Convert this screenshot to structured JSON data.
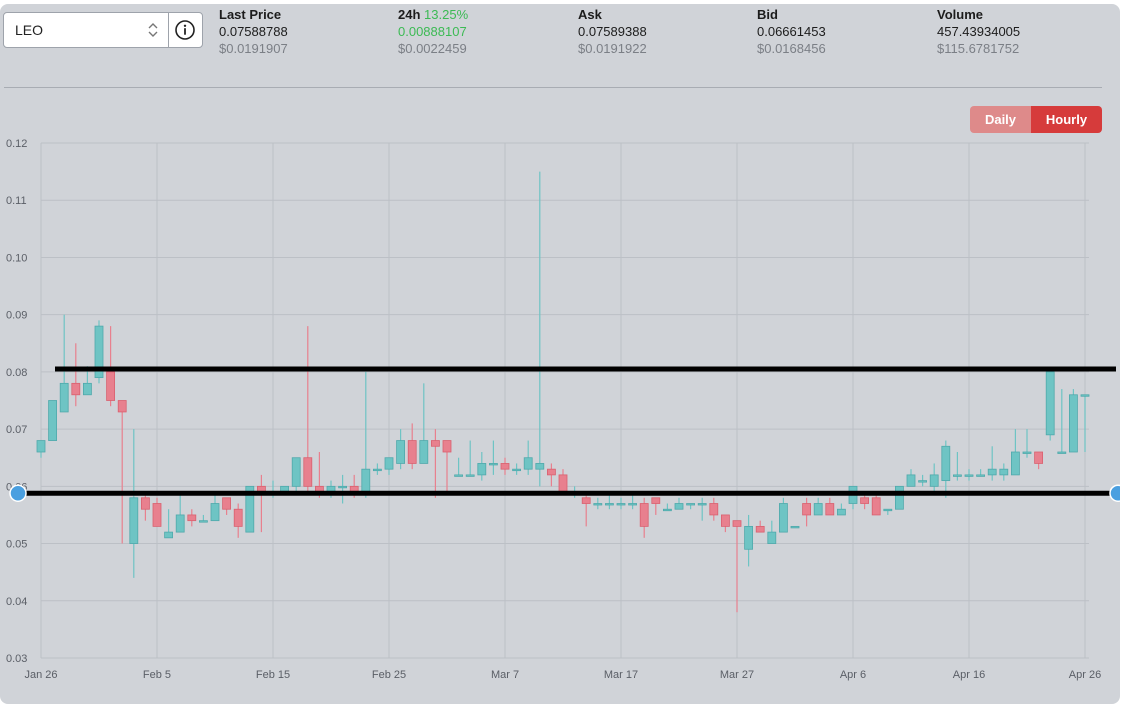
{
  "selector": {
    "value": "LEO"
  },
  "stats": [
    {
      "label": "Last Price",
      "label_extra": "",
      "value": "0.07588788",
      "sub": "$0.0191907"
    },
    {
      "label": "24h",
      "label_extra": "13.25%",
      "value": "0.00888107",
      "sub": "$0.0022459"
    },
    {
      "label": "Ask",
      "label_extra": "",
      "value": "0.07589388",
      "sub": "$0.0191922"
    },
    {
      "label": "Bid",
      "label_extra": "",
      "value": "0.06661453",
      "sub": "$0.0168456"
    },
    {
      "label": "Volume",
      "label_extra": "",
      "value": "457.43934005",
      "sub": "$115.6781752"
    }
  ],
  "toggle": {
    "daily": "Daily",
    "hourly": "Hourly",
    "active": "hourly"
  },
  "colors": {
    "up": "#6ec4c4",
    "down": "#e8808e",
    "accent": "#d63b3b",
    "handle": "#4a9fe0",
    "line": "#000000"
  },
  "chart_data": {
    "type": "candlestick",
    "ylim": [
      0.03,
      0.12
    ],
    "yticks": [
      "0.12",
      "0.11",
      "0.10",
      "0.09",
      "0.08",
      "0.07",
      "0.06",
      "0.05",
      "0.04",
      "0.03"
    ],
    "x_range": [
      0,
      91
    ],
    "xticks": [
      {
        "label": "Jan 26",
        "day": 0
      },
      {
        "label": "Feb 5",
        "day": 10
      },
      {
        "label": "Feb 15",
        "day": 20
      },
      {
        "label": "Feb 25",
        "day": 30
      },
      {
        "label": "Mar 7",
        "day": 40
      },
      {
        "label": "Mar 17",
        "day": 50
      },
      {
        "label": "Mar 27",
        "day": 60
      },
      {
        "label": "Apr 6",
        "day": 70
      },
      {
        "label": "Apr 16",
        "day": 80
      },
      {
        "label": "Apr 26",
        "day": 90
      }
    ],
    "candles": [
      [
        0,
        0.066,
        0.068,
        0.065,
        0.068
      ],
      [
        1,
        0.068,
        0.075,
        0.068,
        0.075
      ],
      [
        2,
        0.073,
        0.078,
        0.073,
        0.09
      ],
      [
        3,
        0.078,
        0.076,
        0.074,
        0.085
      ],
      [
        4,
        0.076,
        0.078,
        0.076,
        0.081
      ],
      [
        5,
        0.079,
        0.088,
        0.078,
        0.089
      ],
      [
        6,
        0.08,
        0.075,
        0.074,
        0.088
      ],
      [
        7,
        0.075,
        0.073,
        0.05,
        0.075
      ],
      [
        8,
        0.05,
        0.058,
        0.044,
        0.07
      ],
      [
        9,
        0.058,
        0.056,
        0.054,
        0.059
      ],
      [
        10,
        0.057,
        0.053,
        0.053,
        0.058
      ],
      [
        11,
        0.051,
        0.052,
        0.051,
        0.056
      ],
      [
        12,
        0.052,
        0.055,
        0.052,
        0.059
      ],
      [
        13,
        0.055,
        0.054,
        0.053,
        0.056
      ],
      [
        14,
        0.054,
        0.054,
        0.054,
        0.055
      ],
      [
        15,
        0.054,
        0.057,
        0.054,
        0.059
      ],
      [
        16,
        0.058,
        0.056,
        0.055,
        0.058
      ],
      [
        17,
        0.056,
        0.053,
        0.051,
        0.057
      ],
      [
        18,
        0.052,
        0.06,
        0.052,
        0.06
      ],
      [
        19,
        0.06,
        0.059,
        0.052,
        0.062
      ],
      [
        20,
        0.059,
        0.059,
        0.058,
        0.061
      ],
      [
        21,
        0.059,
        0.06,
        0.059,
        0.06
      ],
      [
        22,
        0.06,
        0.065,
        0.059,
        0.065
      ],
      [
        23,
        0.065,
        0.06,
        0.059,
        0.088
      ],
      [
        24,
        0.06,
        0.059,
        0.058,
        0.066
      ],
      [
        25,
        0.059,
        0.06,
        0.058,
        0.061
      ],
      [
        26,
        0.06,
        0.06,
        0.057,
        0.062
      ],
      [
        27,
        0.06,
        0.059,
        0.058,
        0.062
      ],
      [
        28,
        0.059,
        0.063,
        0.058,
        0.08
      ],
      [
        29,
        0.063,
        0.063,
        0.062,
        0.064
      ],
      [
        30,
        0.063,
        0.065,
        0.062,
        0.065
      ],
      [
        31,
        0.064,
        0.068,
        0.063,
        0.07
      ],
      [
        32,
        0.068,
        0.064,
        0.063,
        0.071
      ],
      [
        33,
        0.064,
        0.068,
        0.064,
        0.078
      ],
      [
        34,
        0.068,
        0.067,
        0.058,
        0.07
      ],
      [
        35,
        0.068,
        0.066,
        0.059,
        0.068
      ],
      [
        36,
        0.062,
        0.062,
        0.062,
        0.065
      ],
      [
        37,
        0.062,
        0.062,
        0.062,
        0.068
      ],
      [
        38,
        0.062,
        0.064,
        0.061,
        0.066
      ],
      [
        39,
        0.064,
        0.064,
        0.062,
        0.068
      ],
      [
        40,
        0.064,
        0.063,
        0.062,
        0.065
      ],
      [
        41,
        0.063,
        0.063,
        0.062,
        0.064
      ],
      [
        42,
        0.063,
        0.065,
        0.062,
        0.068
      ],
      [
        43,
        0.063,
        0.064,
        0.06,
        0.115
      ],
      [
        44,
        0.063,
        0.062,
        0.06,
        0.064
      ],
      [
        45,
        0.062,
        0.059,
        0.059,
        0.063
      ],
      [
        46,
        0.059,
        0.059,
        0.058,
        0.06
      ],
      [
        47,
        0.058,
        0.057,
        0.053,
        0.059
      ],
      [
        48,
        0.057,
        0.057,
        0.056,
        0.058
      ],
      [
        49,
        0.057,
        0.057,
        0.056,
        0.059
      ],
      [
        50,
        0.057,
        0.057,
        0.056,
        0.058
      ],
      [
        51,
        0.057,
        0.057,
        0.056,
        0.059
      ],
      [
        52,
        0.057,
        0.053,
        0.051,
        0.058
      ],
      [
        53,
        0.058,
        0.057,
        0.055,
        0.058
      ],
      [
        54,
        0.056,
        0.056,
        0.056,
        0.057
      ],
      [
        55,
        0.056,
        0.057,
        0.056,
        0.058
      ],
      [
        56,
        0.057,
        0.057,
        0.056,
        0.057
      ],
      [
        57,
        0.057,
        0.057,
        0.054,
        0.058
      ],
      [
        58,
        0.057,
        0.055,
        0.054,
        0.058
      ],
      [
        59,
        0.055,
        0.053,
        0.052,
        0.055
      ],
      [
        60,
        0.054,
        0.053,
        0.038,
        0.054
      ],
      [
        61,
        0.049,
        0.053,
        0.046,
        0.055
      ],
      [
        62,
        0.053,
        0.052,
        0.052,
        0.054
      ],
      [
        63,
        0.05,
        0.052,
        0.05,
        0.054
      ],
      [
        64,
        0.052,
        0.057,
        0.052,
        0.058
      ],
      [
        65,
        0.053,
        0.053,
        0.053,
        0.053
      ],
      [
        66,
        0.057,
        0.055,
        0.053,
        0.058
      ],
      [
        67,
        0.055,
        0.057,
        0.055,
        0.058
      ],
      [
        68,
        0.057,
        0.055,
        0.055,
        0.058
      ],
      [
        69,
        0.055,
        0.056,
        0.055,
        0.057
      ],
      [
        70,
        0.057,
        0.06,
        0.056,
        0.06
      ],
      [
        71,
        0.058,
        0.057,
        0.056,
        0.059
      ],
      [
        72,
        0.058,
        0.055,
        0.055,
        0.059
      ],
      [
        73,
        0.056,
        0.056,
        0.055,
        0.056
      ],
      [
        74,
        0.056,
        0.06,
        0.056,
        0.06
      ],
      [
        75,
        0.06,
        0.062,
        0.06,
        0.063
      ],
      [
        76,
        0.061,
        0.061,
        0.06,
        0.062
      ],
      [
        77,
        0.06,
        0.062,
        0.059,
        0.064
      ],
      [
        78,
        0.061,
        0.067,
        0.058,
        0.068
      ],
      [
        79,
        0.062,
        0.062,
        0.061,
        0.066
      ],
      [
        80,
        0.062,
        0.062,
        0.061,
        0.063
      ],
      [
        81,
        0.062,
        0.062,
        0.062,
        0.063
      ],
      [
        82,
        0.062,
        0.063,
        0.061,
        0.067
      ],
      [
        83,
        0.062,
        0.063,
        0.061,
        0.064
      ],
      [
        84,
        0.062,
        0.066,
        0.062,
        0.07
      ],
      [
        85,
        0.066,
        0.066,
        0.065,
        0.07
      ],
      [
        86,
        0.066,
        0.064,
        0.063,
        0.066
      ],
      [
        87,
        0.069,
        0.08,
        0.068,
        0.08
      ],
      [
        88,
        0.066,
        0.066,
        0.066,
        0.077
      ],
      [
        89,
        0.066,
        0.076,
        0.066,
        0.077
      ],
      [
        90,
        0.076,
        0.076,
        0.066,
        0.076
      ]
    ],
    "drawn_lines": [
      0.0805,
      0.0588
    ],
    "grid": true
  }
}
